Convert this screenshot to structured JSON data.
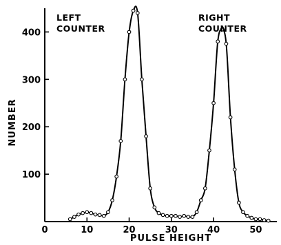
{
  "chart_data": {
    "type": "line",
    "title": "",
    "xlabel": "PULSE HEIGHT",
    "ylabel": "NUMBER",
    "xlim": [
      0,
      55
    ],
    "ylim": [
      0,
      450
    ],
    "xticks": [
      0,
      10,
      20,
      30,
      40,
      50
    ],
    "yticks": [
      100,
      200,
      300,
      400
    ],
    "grid": false,
    "annotations": [
      {
        "lines": [
          "LEFT",
          "COUNTER"
        ]
      },
      {
        "lines": [
          "RIGHT",
          "COUNTER"
        ]
      }
    ],
    "series": [
      {
        "x": [
          6,
          7,
          8,
          9,
          10,
          11,
          12,
          13,
          14,
          15,
          16,
          17,
          18,
          19,
          20,
          21,
          22,
          23,
          24,
          25,
          26,
          27,
          28,
          29,
          30,
          31,
          32,
          33,
          34,
          35,
          36,
          37,
          38,
          39,
          40,
          41,
          42,
          43,
          44,
          45,
          46,
          47,
          48,
          49,
          50,
          51,
          52,
          53
        ],
        "y": [
          5,
          10,
          15,
          18,
          20,
          18,
          15,
          14,
          12,
          20,
          45,
          95,
          170,
          300,
          400,
          445,
          440,
          300,
          180,
          70,
          30,
          18,
          14,
          12,
          12,
          12,
          10,
          12,
          10,
          10,
          20,
          45,
          70,
          150,
          250,
          380,
          405,
          375,
          220,
          110,
          40,
          20,
          12,
          8,
          5,
          5,
          3,
          2
        ]
      }
    ]
  }
}
